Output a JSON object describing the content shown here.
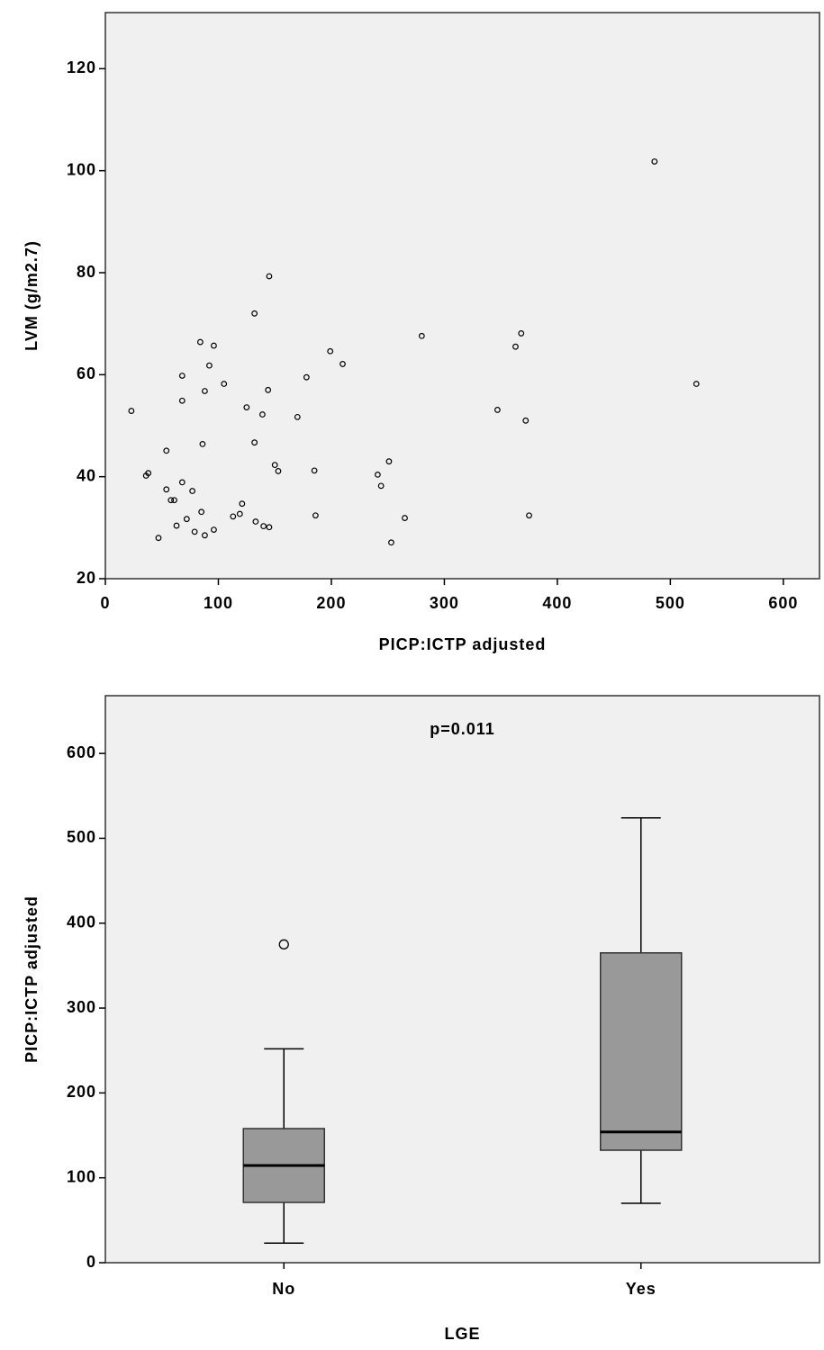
{
  "chart_data": [
    {
      "type": "scatter",
      "x_label": "PICP:ICTP adjusted",
      "y_label": "LVM (g/m2.7)",
      "x": [
        23,
        36,
        38,
        47,
        54,
        54,
        58,
        61,
        63,
        68,
        68,
        68,
        72,
        77,
        79,
        84,
        86,
        85,
        88,
        88,
        92,
        96,
        96,
        105,
        113,
        119,
        121,
        125,
        132,
        132,
        133,
        139,
        140,
        145,
        144,
        145,
        150,
        153,
        170,
        178,
        185,
        186,
        199,
        210,
        241,
        244,
        251,
        253,
        265,
        280,
        347,
        363,
        368,
        372,
        375,
        486,
        523
      ],
      "values": [
        52.9,
        40.2,
        40.7,
        28,
        45.1,
        37.5,
        35.4,
        35.4,
        30.4,
        59.8,
        54.9,
        38.9,
        31.7,
        37.2,
        29.2,
        66.4,
        46.4,
        33.1,
        56.8,
        28.5,
        61.8,
        65.7,
        29.6,
        58.2,
        32.2,
        32.7,
        34.7,
        53.6,
        72,
        46.7,
        31.2,
        52.2,
        30.3,
        79.3,
        57,
        30.1,
        42.3,
        41.1,
        51.7,
        59.5,
        41.2,
        32.4,
        64.6,
        62.1,
        40.4,
        38.2,
        43,
        27.1,
        31.9,
        67.6,
        53.1,
        65.5,
        68.1,
        51,
        32.4,
        101.8,
        58.2
      ],
      "xlim": [
        0,
        632
      ],
      "xticks": [
        0,
        100,
        200,
        300,
        400,
        500,
        600
      ],
      "ylim": [
        20,
        131
      ],
      "yticks": [
        20,
        40,
        60,
        80,
        100,
        120
      ],
      "color": "#000000"
    },
    {
      "type": "box",
      "annotation": "p=0.011",
      "x_label": "LGE",
      "y_label": "PICP:ICTP adjusted",
      "categories": [
        "No",
        "Yes"
      ],
      "boxes": [
        {
          "min": 23,
          "q1": 71,
          "median": 114.5,
          "q3": 158,
          "max": 252,
          "outliers": [
            375
          ]
        },
        {
          "min": 70,
          "q1": 132.5,
          "median": 154,
          "q3": 365,
          "max": 524,
          "outliers": []
        }
      ],
      "ylim": [
        0,
        668
      ],
      "yticks": [
        0,
        100,
        200,
        300,
        400,
        500,
        600
      ],
      "color": "#999999"
    }
  ]
}
